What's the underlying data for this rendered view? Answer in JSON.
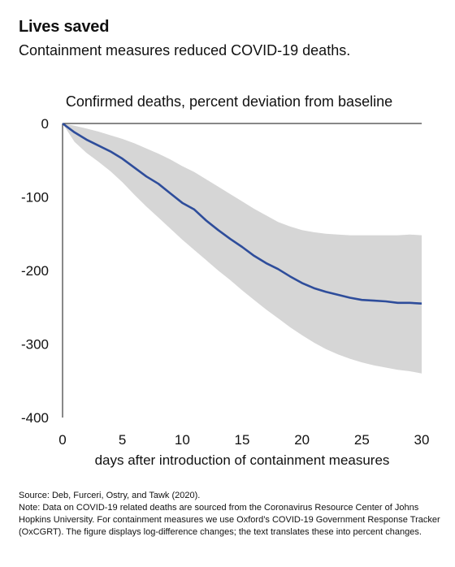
{
  "header": {
    "headline": "Lives saved",
    "subhead": "Containment measures reduced COVID-19 deaths."
  },
  "footnote": {
    "source": "Source: Deb, Furceri, Ostry, and Tawk (2020).",
    "note": "Note: Data on COVID-19 related deaths are sourced from the Coronavirus Resource Center of Johns Hopkins University. For containment measures we use Oxford’s COVID-19 Government Response Tracker (OxCGRT). The figure displays log-difference changes; the text translates these into percent changes."
  },
  "chart_data": {
    "type": "line",
    "title": "Confirmed deaths, percent deviation from baseline",
    "xlabel": "days after introduction of containment measures",
    "ylabel": "",
    "xlim": [
      0,
      30
    ],
    "ylim": [
      -400,
      0
    ],
    "xticks": [
      0,
      5,
      10,
      15,
      20,
      25,
      30
    ],
    "yticks": [
      0,
      -100,
      -200,
      -300,
      -400
    ],
    "grid": false,
    "colors": {
      "line": "#2e4d9b",
      "band": "#d6d6d6",
      "axis": "#111111"
    },
    "x": [
      0,
      1,
      2,
      3,
      4,
      5,
      6,
      7,
      8,
      9,
      10,
      11,
      12,
      13,
      14,
      15,
      16,
      17,
      18,
      19,
      20,
      21,
      22,
      23,
      24,
      25,
      26,
      27,
      28,
      29,
      30
    ],
    "series": [
      {
        "role": "estimate",
        "values": [
          0,
          -12,
          -22,
          -30,
          -38,
          -48,
          -60,
          -72,
          -82,
          -95,
          -108,
          -117,
          -132,
          -145,
          -157,
          -168,
          -180,
          -190,
          -198,
          -208,
          -217,
          -224,
          -229,
          -233,
          -237,
          -240,
          -241,
          -242,
          -244,
          -244,
          -245
        ]
      },
      {
        "role": "upper",
        "values": [
          0,
          -3,
          -7,
          -11,
          -16,
          -21,
          -27,
          -34,
          -41,
          -49,
          -58,
          -66,
          -76,
          -86,
          -96,
          -106,
          -116,
          -125,
          -134,
          -140,
          -145,
          -148,
          -150,
          -151,
          -152,
          -152,
          -152,
          -152,
          -152,
          -151,
          -152
        ]
      },
      {
        "role": "lower",
        "values": [
          0,
          -25,
          -40,
          -52,
          -65,
          -80,
          -97,
          -113,
          -128,
          -143,
          -158,
          -172,
          -186,
          -200,
          -213,
          -227,
          -240,
          -253,
          -265,
          -277,
          -288,
          -298,
          -307,
          -314,
          -320,
          -325,
          -329,
          -332,
          -335,
          -337,
          -340
        ]
      }
    ]
  }
}
